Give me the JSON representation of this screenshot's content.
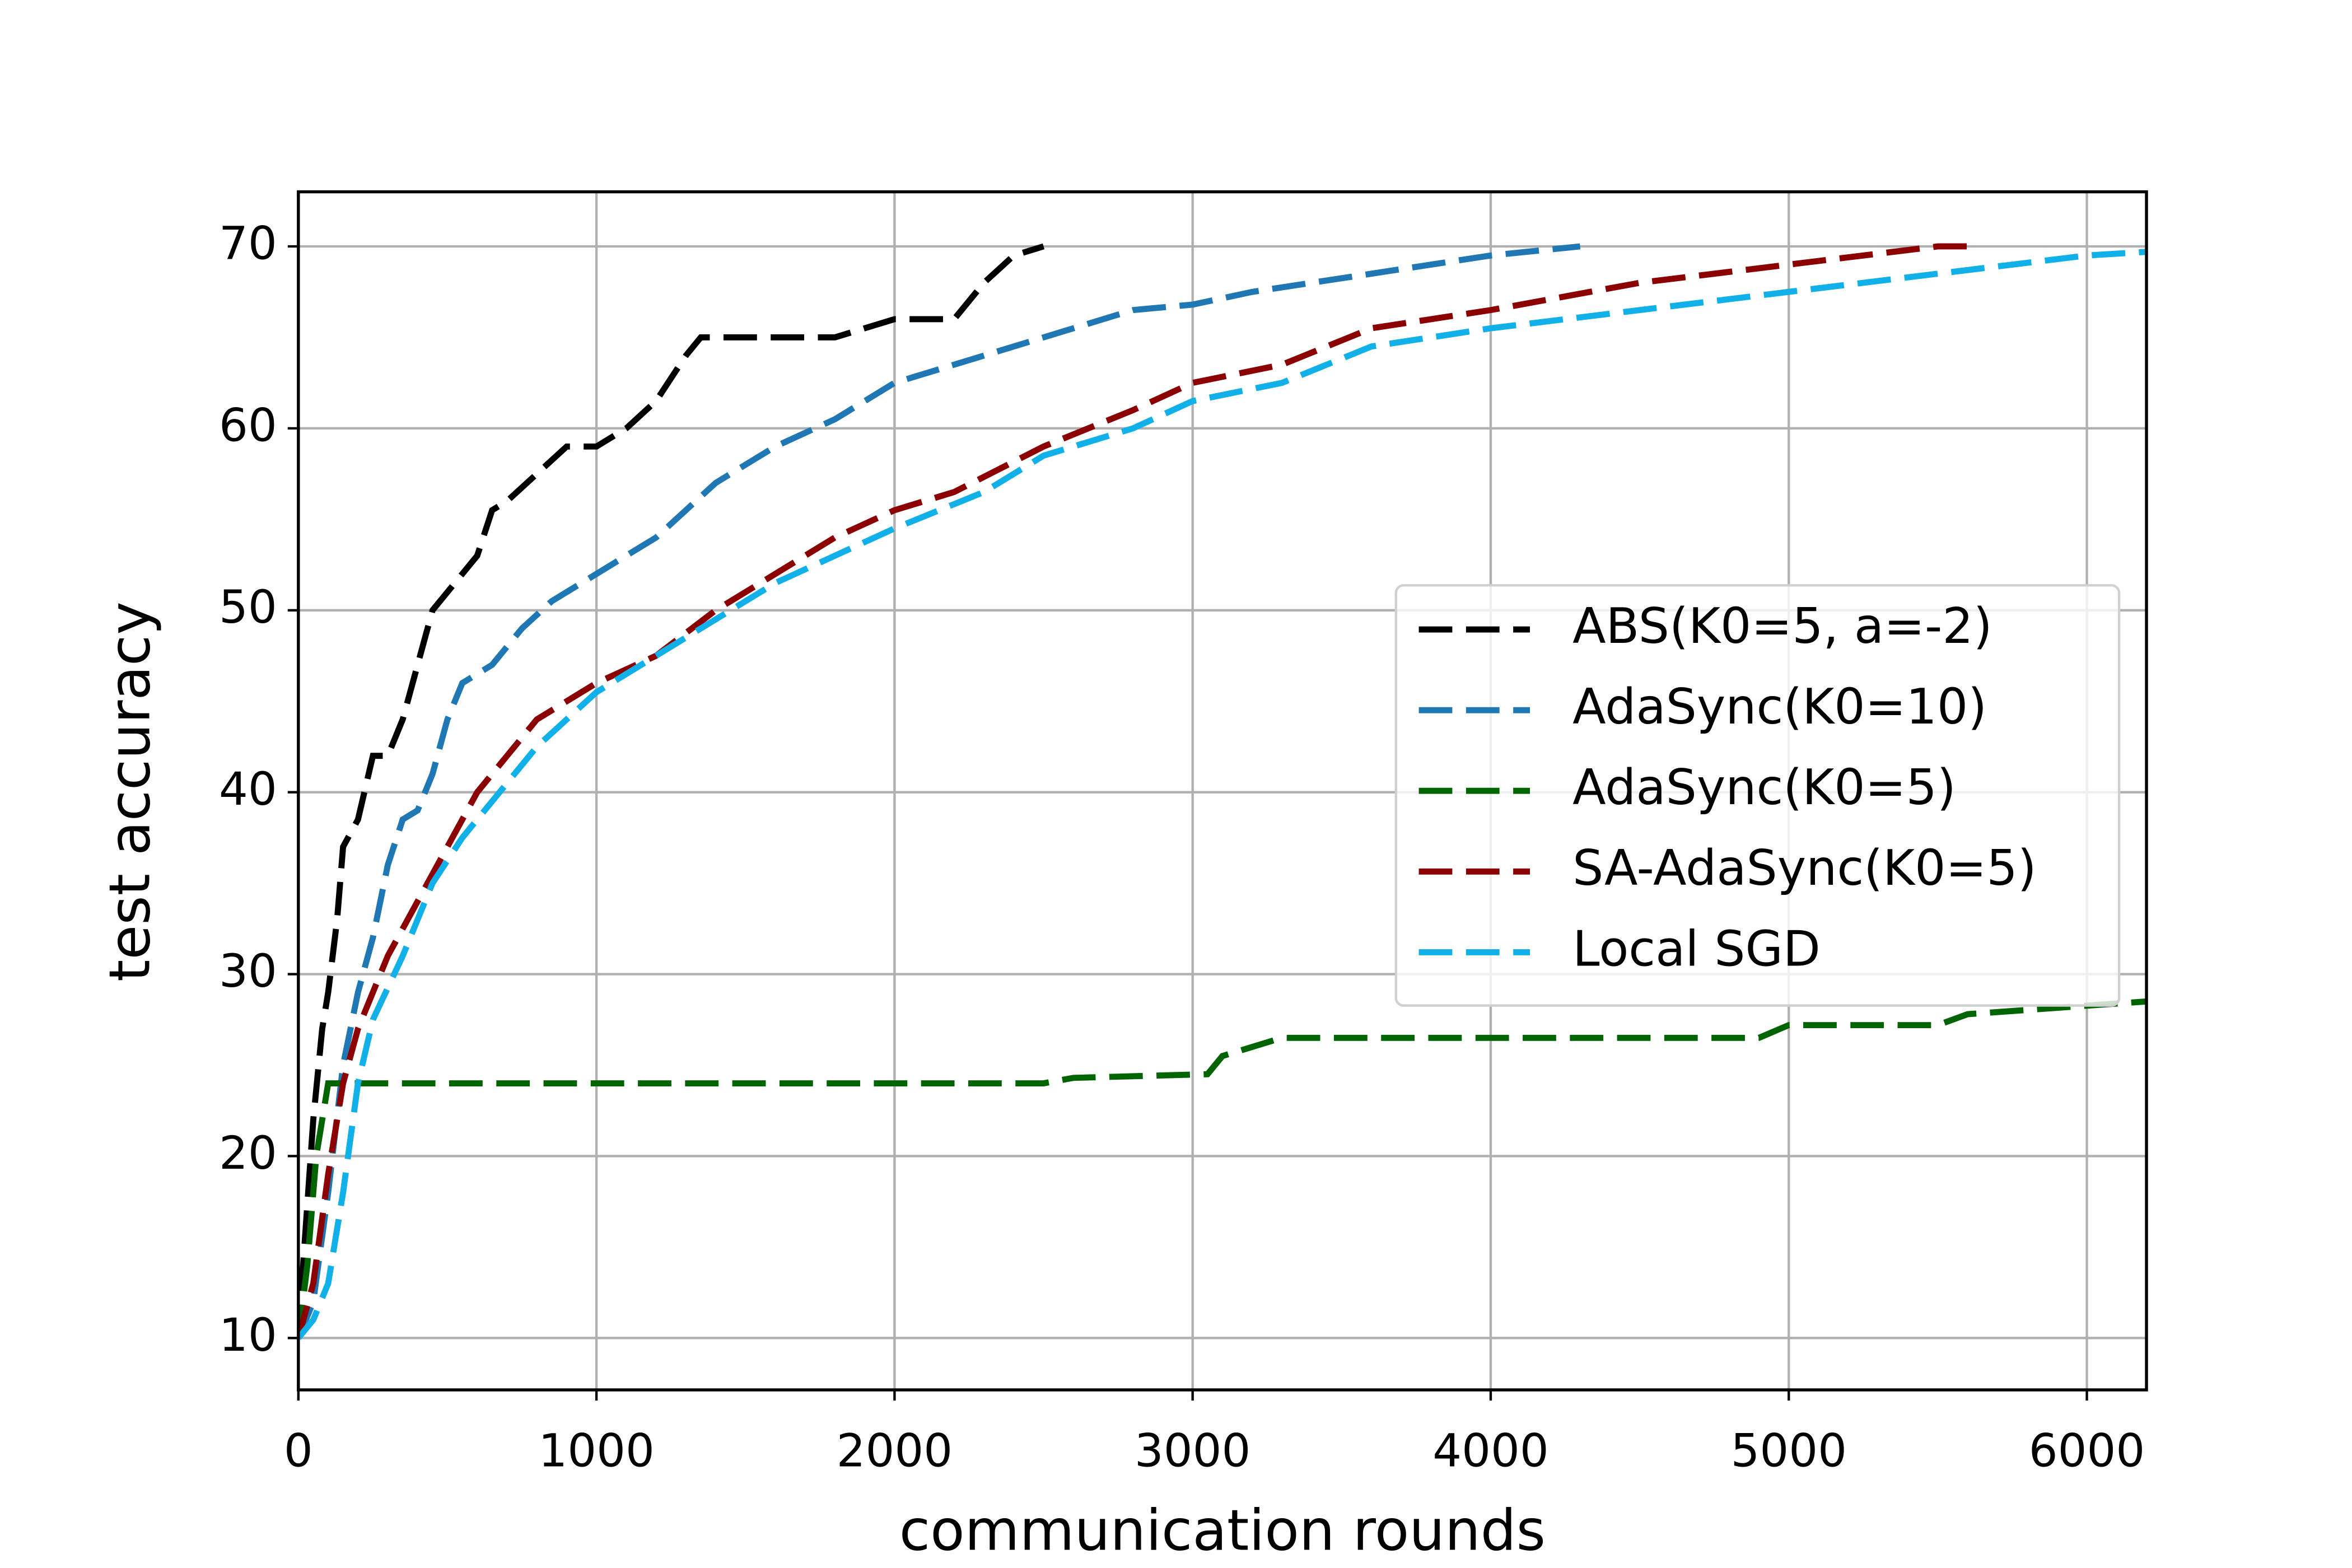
{
  "chart_data": {
    "type": "line",
    "xlabel": "communication rounds",
    "ylabel": "test accuracy",
    "xlim": [
      0,
      6200
    ],
    "ylim": [
      7.15,
      73
    ],
    "xticks": [
      0,
      1000,
      2000,
      3000,
      4000,
      5000,
      6000
    ],
    "yticks": [
      10,
      20,
      30,
      40,
      50,
      60,
      70
    ],
    "grid": true,
    "legend": "center right",
    "series": [
      {
        "name": "ABS(K0=5, a=-2)",
        "color": "#000000",
        "x": [
          0,
          20,
          50,
          80,
          100,
          130,
          150,
          200,
          250,
          300,
          350,
          400,
          450,
          500,
          550,
          600,
          650,
          700,
          800,
          900,
          1000,
          1100,
          1200,
          1300,
          1350,
          1500,
          1800,
          2000,
          2200,
          2300,
          2400,
          2500
        ],
        "values": [
          10,
          15,
          22,
          27,
          29,
          33,
          37,
          38.5,
          42,
          42,
          44,
          47,
          50,
          51,
          52,
          53,
          55.5,
          56,
          57.5,
          59,
          59,
          60,
          61.5,
          64,
          65,
          65,
          65,
          66,
          66,
          68,
          69.5,
          70
        ]
      },
      {
        "name": "AdaSync(K0=10)",
        "color": "#1f77b4",
        "x": [
          0,
          50,
          100,
          150,
          200,
          250,
          300,
          350,
          400,
          450,
          500,
          550,
          650,
          750,
          850,
          1000,
          1200,
          1400,
          1600,
          1800,
          2000,
          2200,
          2500,
          2800,
          3000,
          3200,
          3600,
          4000,
          4300
        ],
        "values": [
          10,
          12,
          18,
          25,
          29,
          32,
          36,
          38.5,
          39,
          41,
          44,
          46,
          47,
          49,
          50.5,
          52,
          54,
          57,
          59,
          60.5,
          62.5,
          63.5,
          65,
          66.5,
          66.8,
          67.5,
          68.5,
          69.5,
          70
        ]
      },
      {
        "name": "AdaSync(K0=5)",
        "color": "#006400",
        "x": [
          0,
          30,
          60,
          100,
          500,
          2500,
          2600,
          3050,
          3100,
          3300,
          4900,
          5000,
          5500,
          5600,
          6200
        ],
        "values": [
          10,
          14,
          20,
          24,
          24,
          24,
          24.3,
          24.5,
          25.5,
          26.5,
          26.5,
          27.2,
          27.2,
          27.8,
          28.5
        ]
      },
      {
        "name": "SA-AdaSync(K0=5)",
        "color": "#8b0000",
        "x": [
          0,
          50,
          100,
          150,
          200,
          300,
          400,
          500,
          600,
          700,
          800,
          1000,
          1200,
          1400,
          1600,
          1800,
          2000,
          2200,
          2500,
          2800,
          3000,
          3300,
          3600,
          4000,
          4500,
          5000,
          5500,
          5600
        ],
        "values": [
          10,
          13,
          19,
          24,
          27,
          31,
          34,
          37,
          40,
          42,
          44,
          46,
          47.5,
          50,
          52,
          54,
          55.5,
          56.5,
          59,
          61,
          62.5,
          63.5,
          65.5,
          66.5,
          68,
          69,
          70,
          70
        ]
      },
      {
        "name": "Local SGD",
        "color": "#11b0e8",
        "x": [
          0,
          50,
          100,
          150,
          200,
          250,
          350,
          450,
          550,
          650,
          800,
          1000,
          1200,
          1400,
          1600,
          1800,
          2000,
          2300,
          2500,
          2800,
          3000,
          3300,
          3600,
          4000,
          4500,
          5000,
          5500,
          6000,
          6200
        ],
        "values": [
          10,
          11,
          13,
          18,
          24,
          27.5,
          31,
          35,
          37.5,
          39.5,
          42.5,
          45.5,
          47.5,
          49.5,
          51.5,
          53,
          54.5,
          56.5,
          58.5,
          60,
          61.5,
          62.5,
          64.5,
          65.5,
          66.5,
          67.5,
          68.5,
          69.5,
          69.7
        ]
      }
    ]
  }
}
